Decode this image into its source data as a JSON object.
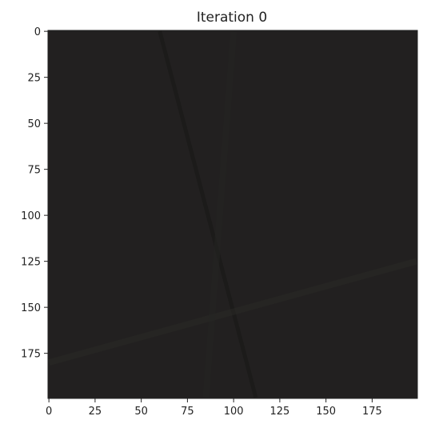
{
  "chart_data": {
    "type": "heatmap",
    "title": "Iteration 0",
    "xlabel": "",
    "ylabel": "",
    "xlim": [
      0,
      199
    ],
    "ylim": [
      199,
      0
    ],
    "x_ticks": [
      0,
      25,
      50,
      75,
      100,
      125,
      150,
      175
    ],
    "y_ticks": [
      0,
      25,
      50,
      75,
      100,
      125,
      150,
      175
    ],
    "grid": false,
    "image": {
      "width": 200,
      "height": 200,
      "background_color": "#222020",
      "features": [
        {
          "kind": "dark-line",
          "from": [
            60,
            0
          ],
          "to": [
            112,
            199
          ],
          "color": "#1a1a18"
        },
        {
          "kind": "faint-line",
          "from": [
            0,
            180
          ],
          "to": [
            199,
            125
          ],
          "color": "#2a2a26"
        },
        {
          "kind": "faint-line",
          "from": [
            100,
            0
          ],
          "to": [
            85,
            199
          ],
          "color": "#252523"
        }
      ]
    }
  },
  "colors": {
    "axis": "#222222",
    "background": "#ffffff"
  }
}
